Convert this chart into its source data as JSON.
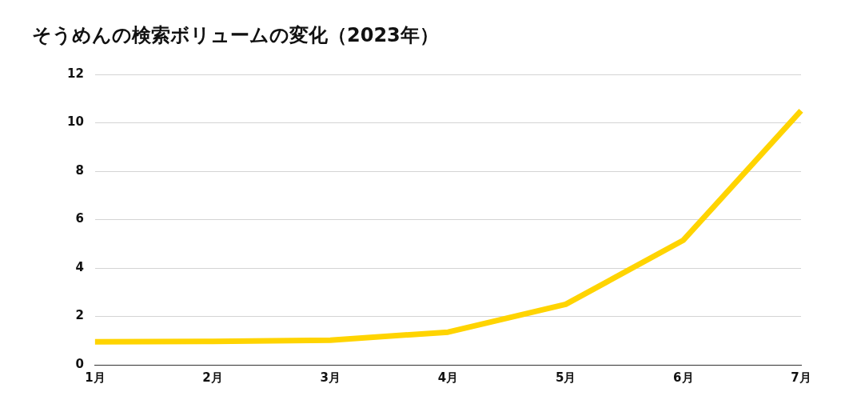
{
  "chart_data": {
    "type": "line",
    "title": "そうめんの検索ボリュームの変化（2023年）",
    "categories": [
      "1月",
      "2月",
      "3月",
      "4月",
      "5月",
      "6月",
      "7月"
    ],
    "series": [
      {
        "color": "#ffd400",
        "values": [
          0.95,
          0.97,
          1.02,
          1.35,
          2.5,
          5.15,
          10.5
        ]
      }
    ],
    "ylim": [
      0,
      12
    ],
    "yticks": [
      0,
      2,
      4,
      6,
      8,
      10,
      12
    ],
    "grid": "y",
    "legend": false,
    "marker": "none",
    "line_style": "solid"
  }
}
